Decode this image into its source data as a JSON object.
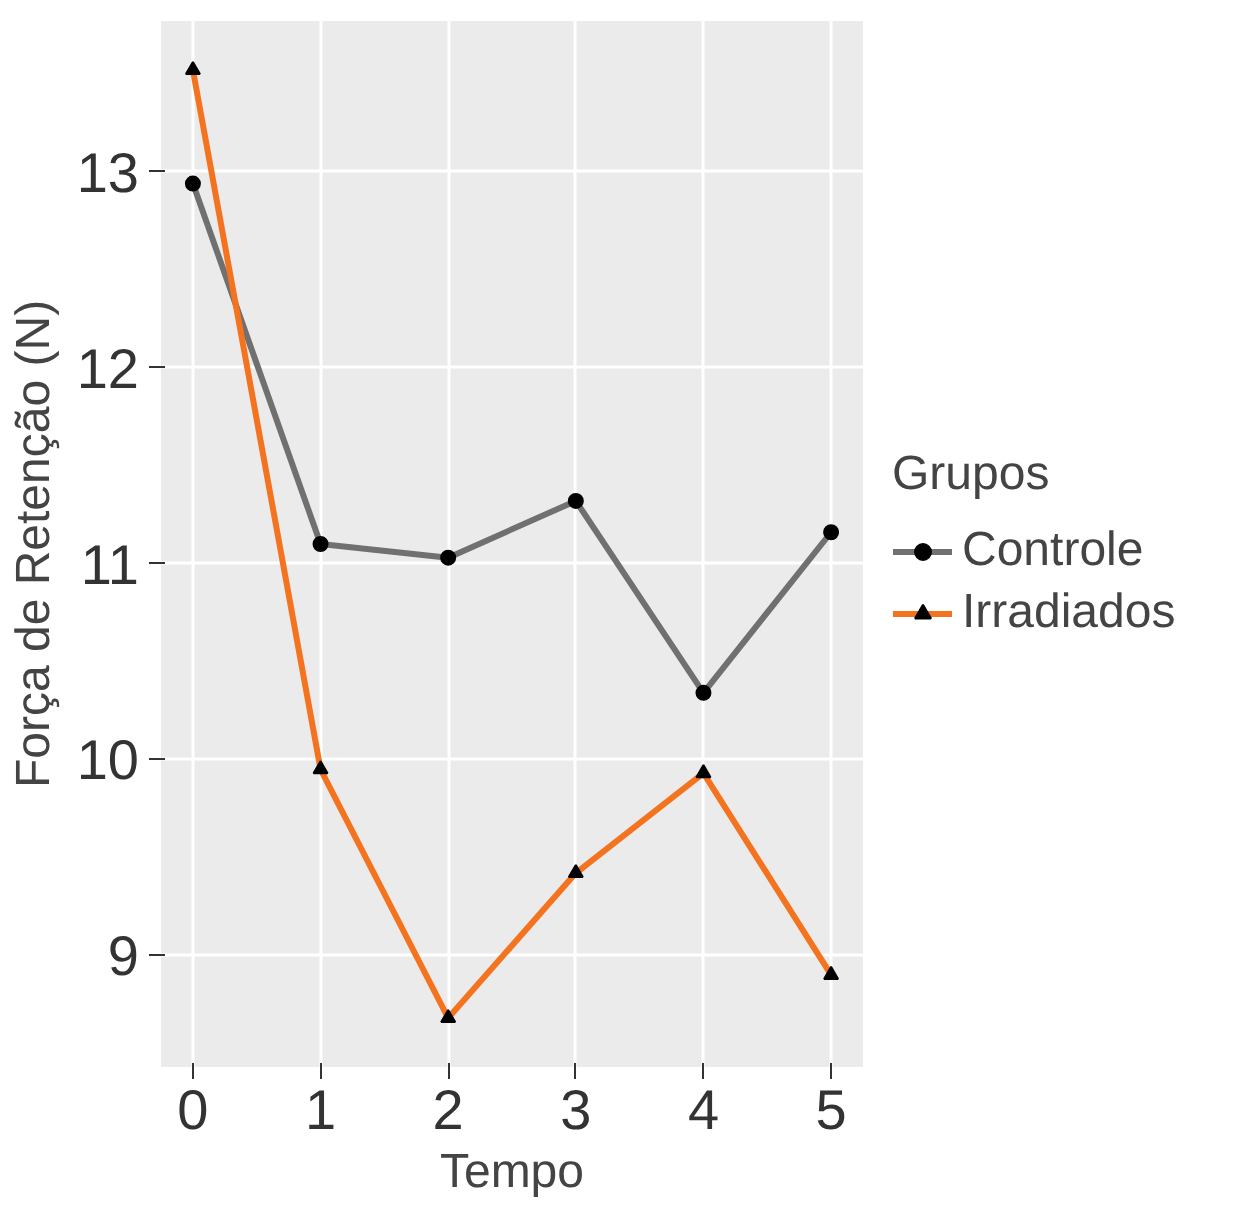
{
  "chart_data": {
    "type": "line",
    "xlabel": "Tempo",
    "ylabel": "Força de Retenção (N)",
    "legend_title": "Grupos",
    "x": [
      0,
      1,
      2,
      3,
      4,
      5
    ],
    "series": [
      {
        "name": "Controle",
        "color": "#707070",
        "marker": "circle",
        "values": [
          12.94,
          11.1,
          11.03,
          11.32,
          10.34,
          11.16
        ]
      },
      {
        "name": "Irradiados",
        "color": "#f4731f",
        "marker": "triangle",
        "values": [
          13.52,
          9.95,
          8.68,
          9.42,
          9.93,
          8.9
        ]
      }
    ],
    "xlim": [
      -0.25,
      5.25
    ],
    "ylim": [
      8.43,
      13.77
    ],
    "xticks": [
      0,
      1,
      2,
      3,
      4,
      5
    ],
    "yticks": [
      9,
      10,
      11,
      12,
      13
    ],
    "grid": true,
    "legend": "right",
    "line_style": "solid"
  }
}
